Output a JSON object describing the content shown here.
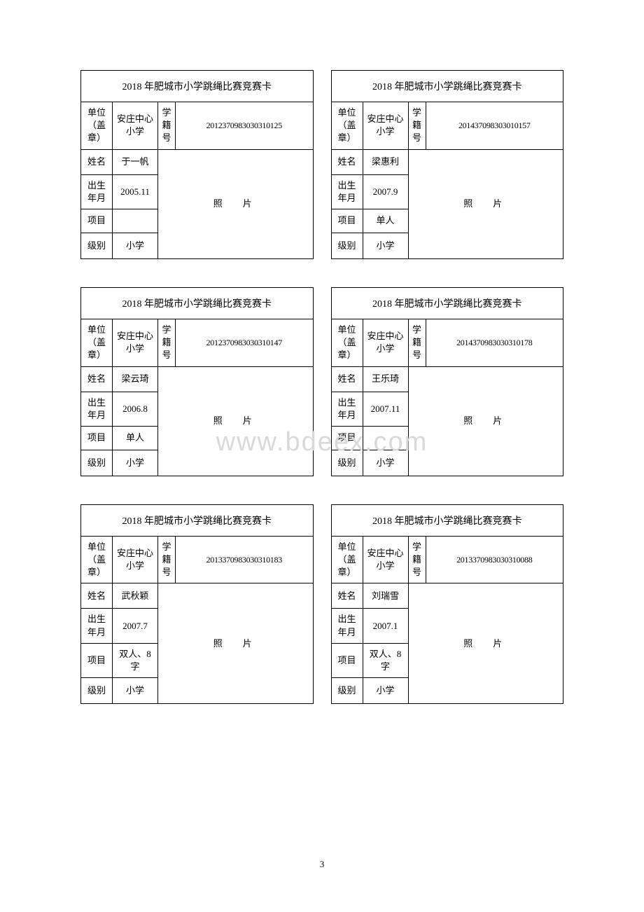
{
  "title": "2018 年肥城市小学跳绳比赛竞赛卡",
  "labels": {
    "unit": "单位（盖章）",
    "student_id": "学籍号",
    "name": "姓名",
    "birth": "出生年月",
    "event": "项目",
    "level": "级别",
    "photo": "照　片"
  },
  "watermark": "www.bdeex.com",
  "page_number": "3",
  "cards": [
    {
      "unit": "安庄中心小学",
      "student_id": "2012370983030310125",
      "name": "于一帆",
      "birth": "2005.11",
      "event": "",
      "level": "小学"
    },
    {
      "unit": "安庄中心小学",
      "student_id": "201437098303010157",
      "name": "梁惠利",
      "birth": "2007.9",
      "event": "单人",
      "level": "小学"
    },
    {
      "unit": "安庄中心小学",
      "student_id": "2012370983030310147",
      "name": "梁云琦",
      "birth": "2006.8",
      "event": "单人",
      "level": "小学"
    },
    {
      "unit": "安庄中心小学",
      "student_id": "2014370983030310178",
      "name": "王乐琦",
      "birth": "2007.11",
      "event": "",
      "level": "小学"
    },
    {
      "unit": "安庄中心小学",
      "student_id": "2013370983030310183",
      "name": "武秋颖",
      "birth": "2007.7",
      "event": "双人、8 字",
      "level": "小学"
    },
    {
      "unit": "安庄中心小学",
      "student_id": "2013370983030310088",
      "name": "刘瑞雪",
      "birth": "2007.1",
      "event": "双人、8 字",
      "level": "小学"
    }
  ]
}
